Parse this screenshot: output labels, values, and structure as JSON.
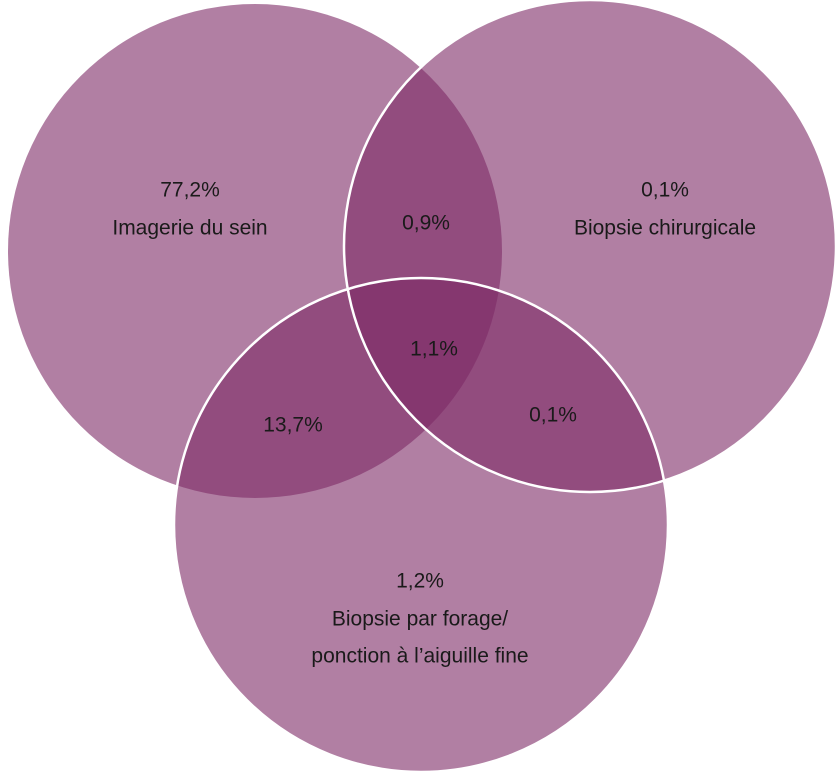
{
  "sets": [
    {
      "value": "77,2%",
      "label": [
        "Imagerie du sein"
      ]
    },
    {
      "value": "0,1%",
      "label": [
        "Biopsie chirurgicale"
      ]
    },
    {
      "value": "1,2%",
      "label": [
        "Biopsie par forage/",
        "ponction à l’aiguille fine"
      ]
    }
  ],
  "intersections": [
    {
      "value": "0,9%"
    },
    {
      "value": "13,7%"
    },
    {
      "value": "0,1%"
    },
    {
      "value": "1,1%"
    }
  ]
}
